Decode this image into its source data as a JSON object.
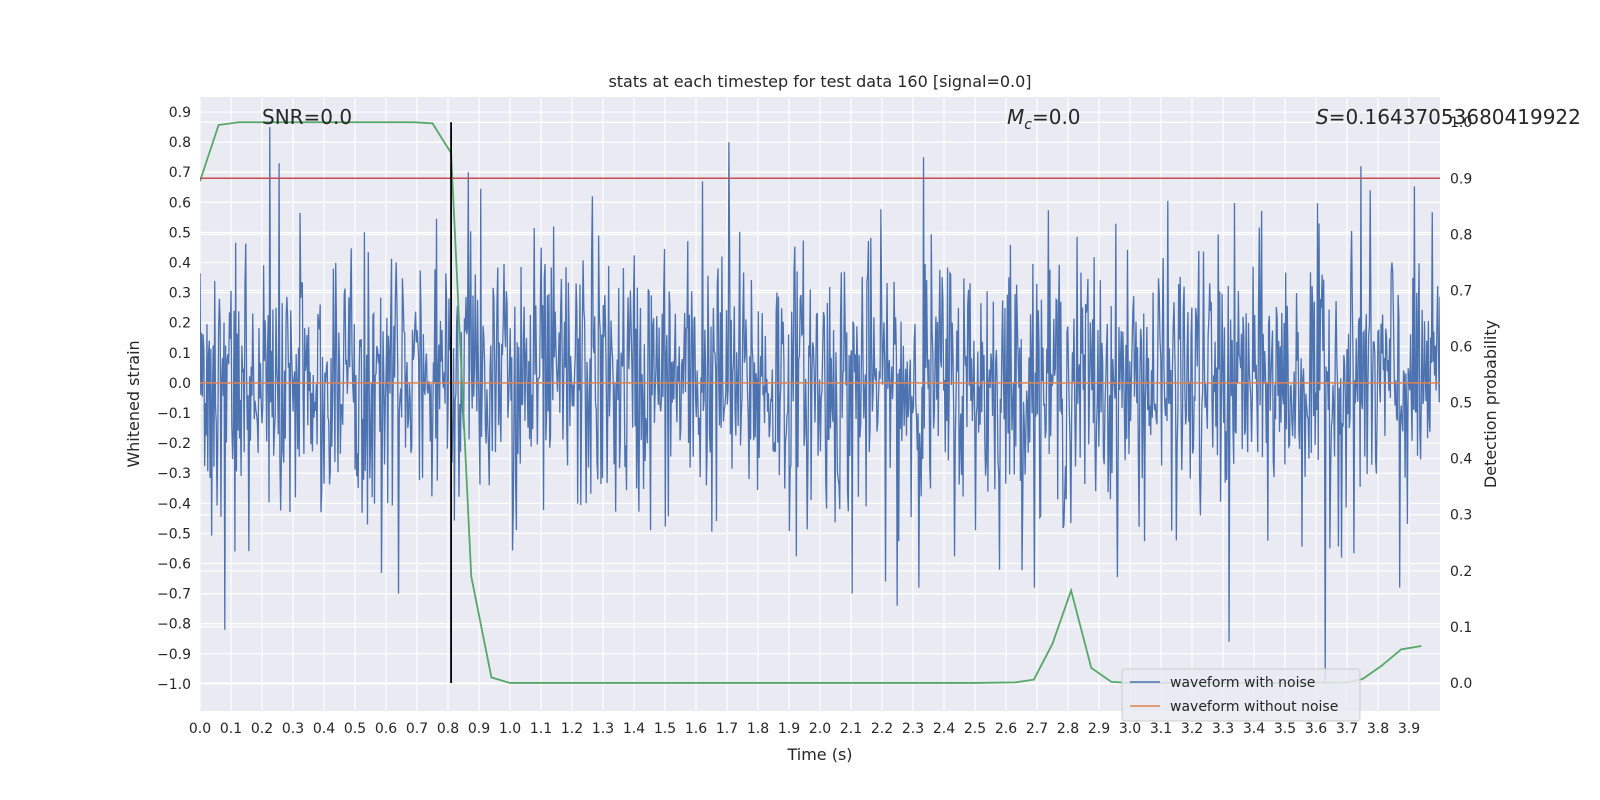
{
  "chart_data": {
    "type": "line",
    "title": "stats at each timestep for test data 160 [signal=0.0]",
    "xlabel": "Time (s)",
    "ylabel": "Whitened strain",
    "y2label": "Detection probability",
    "xlim": [
      0.0,
      4.0
    ],
    "ylim": [
      -1.09,
      0.95
    ],
    "y2lim": [
      -0.05,
      1.045
    ],
    "x_ticks": [
      0.0,
      0.1,
      0.2,
      0.3,
      0.4,
      0.5,
      0.6,
      0.7,
      0.8,
      0.9,
      1.0,
      1.1,
      1.2,
      1.3,
      1.4,
      1.5,
      1.6,
      1.7,
      1.8,
      1.9,
      2.0,
      2.1,
      2.2,
      2.3,
      2.4,
      2.5,
      2.6,
      2.7,
      2.8,
      2.9,
      3.0,
      3.1,
      3.2,
      3.3,
      3.4,
      3.5,
      3.6,
      3.7,
      3.8,
      3.9
    ],
    "y_ticks": [
      0.9,
      0.8,
      0.7,
      0.6,
      0.5,
      0.4,
      0.3,
      0.2,
      0.1,
      0.0,
      -0.1,
      -0.2,
      -0.3,
      -0.4,
      -0.5,
      -0.6,
      -0.7,
      -0.8,
      -0.9,
      -1.0
    ],
    "y_tick_labels": [
      "0.9",
      "0.8",
      "0.7",
      "0.6",
      "0.5",
      "0.4",
      "0.3",
      "0.2",
      "0.1",
      "0.0",
      "−0.1",
      "−0.2",
      "−0.3",
      "−0.4",
      "−0.5",
      "−0.6",
      "−0.7",
      "−0.8",
      "−0.9",
      "−1.0"
    ],
    "y2_ticks": [
      1.0,
      0.9,
      0.8,
      0.7,
      0.6,
      0.5,
      0.4,
      0.3,
      0.2,
      0.1,
      0.0
    ],
    "grid": true,
    "legend_position": "lower-right",
    "annotations": {
      "snr": "SNR=0.0",
      "mc_symbol": "M",
      "mc_sub": "c",
      "mc_value": "=0.0",
      "s_symbol": "S",
      "s_value": "=0.16437053680419922"
    },
    "series": [
      {
        "name": "waveform with noise",
        "axis": "left",
        "color": "#4c72b0",
        "kind": "noise",
        "noise_sigma": 0.22,
        "sample_count": 1600,
        "peaks": [
          {
            "x": 0.08,
            "y": -0.82
          },
          {
            "x": 0.225,
            "y": 0.85
          },
          {
            "x": 0.255,
            "y": 0.73
          },
          {
            "x": 0.64,
            "y": -0.7
          },
          {
            "x": 0.865,
            "y": 0.7
          },
          {
            "x": 1.265,
            "y": 0.62
          },
          {
            "x": 1.62,
            "y": 0.67
          },
          {
            "x": 1.705,
            "y": 0.8
          },
          {
            "x": 2.105,
            "y": -0.7
          },
          {
            "x": 2.25,
            "y": -0.74
          },
          {
            "x": 2.335,
            "y": 0.75
          },
          {
            "x": 3.32,
            "y": -0.86
          },
          {
            "x": 3.745,
            "y": 0.72
          },
          {
            "x": 3.87,
            "y": -0.68
          },
          {
            "x": 3.63,
            "y": -1.0
          }
        ]
      },
      {
        "name": "waveform without noise",
        "axis": "left",
        "color": "#dd8452",
        "x": [
          0.0,
          4.0
        ],
        "y": [
          0.0,
          0.0
        ]
      },
      {
        "axis": "right",
        "color": "#55a868",
        "x": [
          0.0,
          0.06,
          0.125,
          0.19,
          0.25,
          0.31,
          0.375,
          0.44,
          0.5,
          0.56,
          0.625,
          0.69,
          0.75,
          0.81,
          0.875,
          0.94,
          1.0,
          1.06,
          1.5,
          2.0,
          2.5,
          2.63,
          2.69,
          2.75,
          2.81,
          2.875,
          2.94,
          3.0,
          3.5,
          3.7,
          3.75,
          3.81,
          3.875,
          3.94
        ],
        "y": [
          0.895,
          0.995,
          1.0,
          1.0,
          1.0,
          1.0,
          1.0,
          1.0,
          1.0,
          1.0,
          1.0,
          1.0,
          0.998,
          0.945,
          0.19,
          0.01,
          0.0,
          0.0,
          0.0,
          0.0,
          0.0,
          0.001,
          0.006,
          0.07,
          0.165,
          0.027,
          0.002,
          0.0,
          0.0,
          0.001,
          0.007,
          0.03,
          0.06,
          0.066
        ]
      },
      {
        "axis": "right",
        "color": "#c44e52",
        "kind": "threshold",
        "y": 0.9
      }
    ],
    "vline": {
      "x": 0.81,
      "color": "#000000"
    }
  },
  "legend": [
    {
      "label": "waveform with noise",
      "color": "#4c72b0"
    },
    {
      "label": "waveform without noise",
      "color": "#dd8452"
    }
  ]
}
